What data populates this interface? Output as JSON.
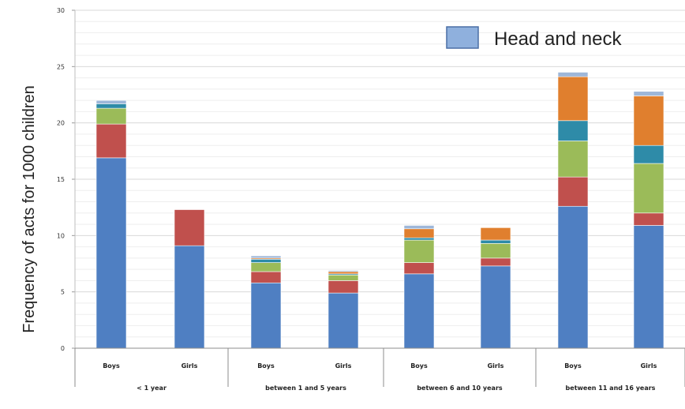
{
  "chart_data": {
    "type": "bar",
    "stacked": true,
    "title": "",
    "xlabel": "",
    "ylabel": "Frequency of acts for 1000 children",
    "ylim": [
      0,
      30
    ],
    "yticks": [
      0,
      5,
      10,
      15,
      20,
      25,
      30
    ],
    "grid": true,
    "legend_position": "top-right",
    "legend_entries": [
      "Head and neck"
    ],
    "categories": [
      "Boys",
      "Girls",
      "Boys",
      "Girls",
      "Boys",
      "Girls",
      "Boys",
      "Girls"
    ],
    "groups": [
      {
        "label": "< 1 year",
        "categories": [
          0,
          1
        ]
      },
      {
        "label": "between 1 and 5 years",
        "categories": [
          2,
          3
        ]
      },
      {
        "label": "between 6 and 10 years",
        "categories": [
          4,
          5
        ]
      },
      {
        "label": "between 11 and 16 years",
        "categories": [
          6,
          7
        ]
      }
    ],
    "series": [
      {
        "name": "Head and neck",
        "color": "#4f7fc2",
        "values": [
          16.9,
          9.1,
          5.8,
          4.9,
          6.6,
          7.3,
          12.6,
          10.9
        ]
      },
      {
        "color": "#c0504d",
        "values": [
          3.0,
          3.2,
          1.0,
          1.1,
          1.0,
          0.7,
          2.6,
          1.1
        ]
      },
      {
        "color": "#9bbb59",
        "values": [
          1.4,
          0.0,
          0.8,
          0.5,
          2.0,
          1.3,
          3.2,
          4.4
        ]
      },
      {
        "color": "#2e8ba8",
        "values": [
          0.4,
          0.0,
          0.3,
          0.1,
          0.2,
          0.3,
          1.8,
          1.6
        ]
      },
      {
        "color": "#e07f2e",
        "values": [
          0.0,
          0.0,
          0.1,
          0.2,
          0.8,
          1.1,
          3.9,
          4.4
        ]
      },
      {
        "color": "#9eb7d9",
        "values": [
          0.3,
          0.0,
          0.2,
          0.1,
          0.3,
          0.0,
          0.4,
          0.4
        ]
      }
    ]
  }
}
